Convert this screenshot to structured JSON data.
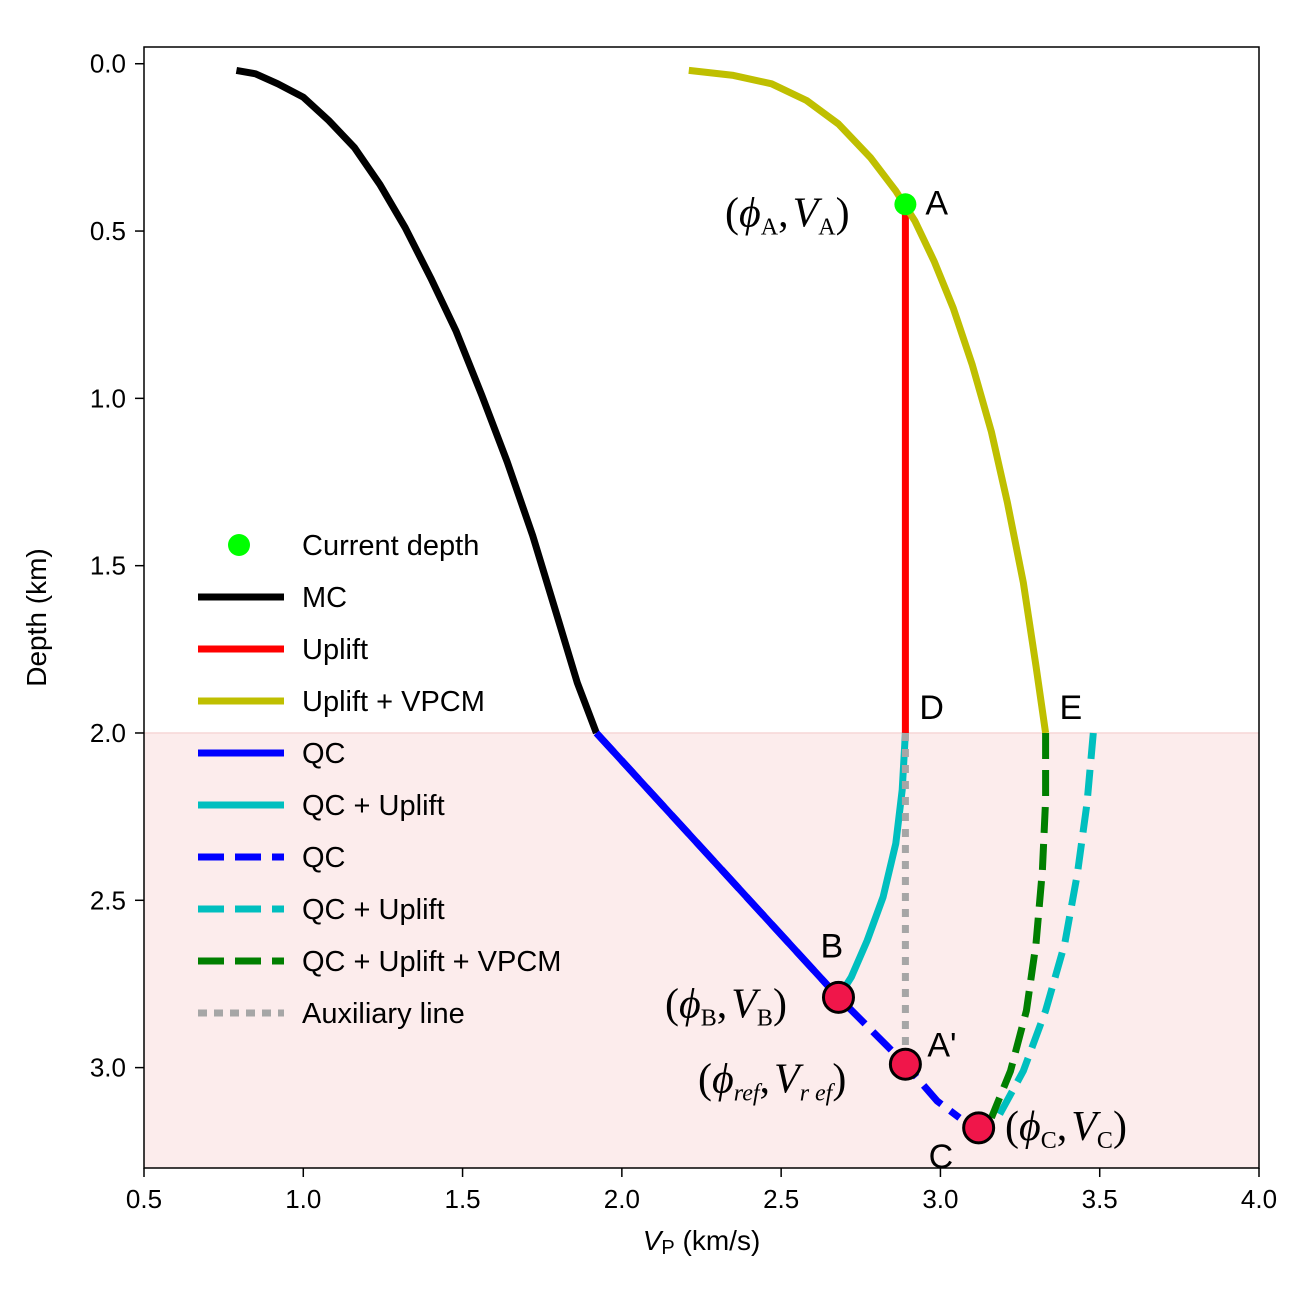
{
  "chart_data": {
    "type": "line",
    "xlabel_var": "V",
    "xlabel_sub": "P",
    "xlabel_unit": " (km/s)",
    "ylabel": "Depth (km)",
    "xlim": [
      0.5,
      4.0
    ],
    "ylim": [
      3.3,
      -0.05
    ],
    "xticks": [
      "0.5",
      "1.0",
      "1.5",
      "2.0",
      "2.5",
      "3.0",
      "3.5",
      "4.0"
    ],
    "yticks": [
      "0.0",
      "0.5",
      "1.0",
      "1.5",
      "2.0",
      "2.5",
      "3.0"
    ],
    "shaded_region": {
      "depth_from": 2.0,
      "depth_to": 3.3,
      "color": "#fcecec"
    },
    "series": [
      {
        "name": "MC",
        "color": "#000000",
        "style": "solid",
        "points": [
          [
            0.79,
            0.02
          ],
          [
            0.85,
            0.03
          ],
          [
            0.92,
            0.06
          ],
          [
            1.0,
            0.1
          ],
          [
            1.08,
            0.17
          ],
          [
            1.16,
            0.25
          ],
          [
            1.24,
            0.36
          ],
          [
            1.32,
            0.49
          ],
          [
            1.4,
            0.64
          ],
          [
            1.48,
            0.8
          ],
          [
            1.56,
            0.99
          ],
          [
            1.64,
            1.19
          ],
          [
            1.72,
            1.41
          ],
          [
            1.8,
            1.66
          ],
          [
            1.86,
            1.85
          ],
          [
            1.92,
            2.0
          ]
        ]
      },
      {
        "name": "Uplift",
        "color": "#ff0000",
        "style": "solid",
        "points": [
          [
            2.89,
            0.42
          ],
          [
            2.89,
            2.0
          ]
        ]
      },
      {
        "name": "Uplift + VPCM",
        "color": "#bfbf00",
        "style": "solid",
        "points": [
          [
            2.21,
            0.02
          ],
          [
            2.35,
            0.035
          ],
          [
            2.47,
            0.06
          ],
          [
            2.58,
            0.11
          ],
          [
            2.68,
            0.18
          ],
          [
            2.78,
            0.28
          ],
          [
            2.86,
            0.38
          ],
          [
            2.92,
            0.47
          ],
          [
            2.98,
            0.59
          ],
          [
            3.04,
            0.73
          ],
          [
            3.1,
            0.9
          ],
          [
            3.16,
            1.1
          ],
          [
            3.21,
            1.31
          ],
          [
            3.26,
            1.55
          ],
          [
            3.3,
            1.8
          ],
          [
            3.33,
            2.0
          ]
        ]
      },
      {
        "name": "QC",
        "color": "#0000ff",
        "style": "solid",
        "points": [
          [
            1.92,
            2.0
          ],
          [
            2.68,
            2.79
          ]
        ]
      },
      {
        "name": "QC + Uplift",
        "color": "#00bfbf",
        "style": "solid",
        "points": [
          [
            2.89,
            2.0
          ],
          [
            2.88,
            2.17
          ],
          [
            2.86,
            2.33
          ],
          [
            2.82,
            2.49
          ],
          [
            2.77,
            2.62
          ],
          [
            2.72,
            2.73
          ],
          [
            2.68,
            2.79
          ]
        ]
      },
      {
        "name": "QC",
        "color": "#0000ff",
        "style": "dashed",
        "points": [
          [
            1.92,
            2.0
          ],
          [
            2.68,
            2.79
          ],
          [
            2.89,
            2.99
          ],
          [
            2.99,
            3.1
          ],
          [
            3.06,
            3.15
          ]
        ]
      },
      {
        "name": "QC + Uplift",
        "color": "#00bfbf",
        "style": "dashed",
        "points": [
          [
            3.48,
            2.0
          ],
          [
            3.46,
            2.21
          ],
          [
            3.43,
            2.42
          ],
          [
            3.39,
            2.63
          ],
          [
            3.33,
            2.83
          ],
          [
            3.26,
            3.01
          ],
          [
            3.18,
            3.15
          ]
        ]
      },
      {
        "name": "QC + Uplift + VPCM",
        "color": "#007f00",
        "style": "dashed",
        "points": [
          [
            3.33,
            2.0
          ],
          [
            3.33,
            2.2
          ],
          [
            3.32,
            2.41
          ],
          [
            3.3,
            2.63
          ],
          [
            3.27,
            2.83
          ],
          [
            3.22,
            3.01
          ],
          [
            3.16,
            3.15
          ]
        ]
      },
      {
        "name": "Auxiliary line",
        "color": "#a6a6a6",
        "style": "dotted",
        "points": [
          [
            2.89,
            2.0
          ],
          [
            2.89,
            2.97
          ]
        ]
      }
    ],
    "markers": [
      {
        "id": "A",
        "x": 2.89,
        "y": 0.42,
        "color": "#00ff00",
        "label": "A",
        "tuple_sub": "A",
        "tuple_sub2": "A"
      },
      {
        "id": "B",
        "x": 2.68,
        "y": 2.79,
        "color": "#f0164a",
        "label": "B",
        "tuple_sub": "B",
        "tuple_sub2": "B"
      },
      {
        "id": "Aprime",
        "x": 2.89,
        "y": 2.99,
        "color": "#f0164a",
        "label": "A'",
        "tuple_sub": "ref",
        "tuple_sub2": "r ef"
      },
      {
        "id": "C",
        "x": 3.12,
        "y": 3.18,
        "color": "#f0164a",
        "label": "C",
        "tuple_sub": "C",
        "tuple_sub2": "C"
      }
    ],
    "point_labels": [
      {
        "id": "D",
        "label": "D",
        "x": 2.89,
        "y": 2.0
      },
      {
        "id": "E",
        "label": "E",
        "x": 3.33,
        "y": 2.0
      }
    ],
    "legend": {
      "placement": "center-left",
      "entries": [
        {
          "name": "Current depth",
          "kind": "marker",
          "color": "#00ff00"
        },
        {
          "name": "MC",
          "kind": "solid",
          "color": "#000000"
        },
        {
          "name": "Uplift",
          "kind": "solid",
          "color": "#ff0000"
        },
        {
          "name": "Uplift + VPCM",
          "kind": "solid",
          "color": "#bfbf00"
        },
        {
          "name": "QC",
          "kind": "solid",
          "color": "#0000ff"
        },
        {
          "name": "QC + Uplift",
          "kind": "solid",
          "color": "#00bfbf"
        },
        {
          "name": "QC",
          "kind": "dashed",
          "color": "#0000ff"
        },
        {
          "name": "QC + Uplift",
          "kind": "dashed",
          "color": "#00bfbf"
        },
        {
          "name": "QC + Uplift + VPCM",
          "kind": "dashed",
          "color": "#007f00"
        },
        {
          "name": "Auxiliary line",
          "kind": "dotted",
          "color": "#a6a6a6"
        }
      ]
    }
  }
}
